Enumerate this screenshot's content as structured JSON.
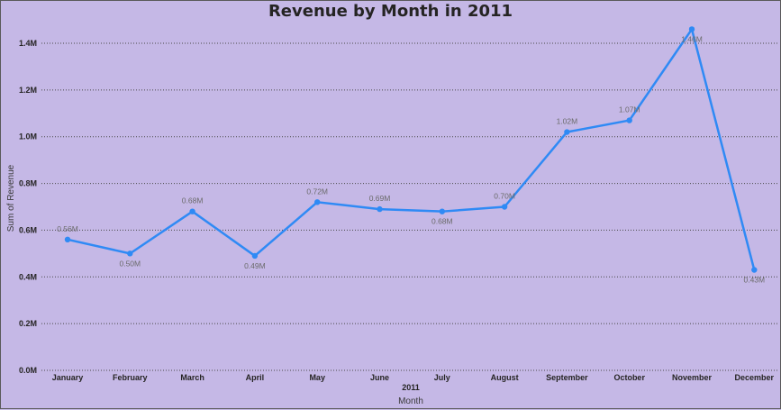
{
  "chart_data": {
    "type": "line",
    "title": "Revenue by Month in 2011",
    "xlabel": "Month",
    "ylabel": "Sum of Revenue",
    "x_group_label": "2011",
    "categories": [
      "January",
      "February",
      "March",
      "April",
      "May",
      "June",
      "July",
      "August",
      "September",
      "October",
      "November",
      "December"
    ],
    "series": [
      {
        "values": [
          0.56,
          0.5,
          0.68,
          0.49,
          0.72,
          0.69,
          0.68,
          0.7,
          1.02,
          1.07,
          1.46,
          0.43
        ],
        "labels": [
          "0.56M",
          "0.50M",
          "0.68M",
          "0.49M",
          "0.72M",
          "0.69M",
          "0.68M",
          "0.70M",
          "1.02M",
          "1.07M",
          "1.46M",
          "0.43M"
        ]
      }
    ],
    "ylim": [
      0,
      1.4
    ],
    "yticks": [
      0,
      0.2,
      0.4,
      0.6,
      0.8,
      1.0,
      1.2,
      1.4
    ],
    "ytick_labels": [
      "0.0M",
      "0.2M",
      "0.4M",
      "0.6M",
      "0.8M",
      "1.0M",
      "1.2M",
      "1.4M"
    ],
    "grid": true,
    "line_color": "#2f8af5",
    "background_color": "#c5b8e6"
  }
}
